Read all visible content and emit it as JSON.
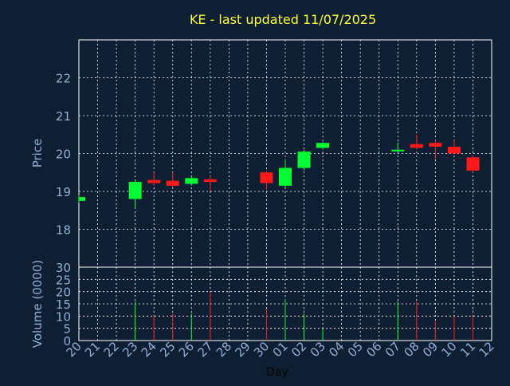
{
  "title": "KE - last updated 11/07/2025",
  "colors": {
    "background": "#0f1f33",
    "grid": "#ffffff",
    "axis_text": "#8fb0d8",
    "title": "#ffff33",
    "up": "#00ff33",
    "down": "#ff1a1a"
  },
  "chart_data": {
    "type": "candlestick",
    "title": "KE - last updated 11/07/2025",
    "xlabel": "Day",
    "x_ticks": [
      "20",
      "21",
      "22",
      "23",
      "24",
      "25",
      "26",
      "27",
      "28",
      "29",
      "30",
      "01",
      "02",
      "03",
      "04",
      "05",
      "06",
      "07",
      "08",
      "09",
      "10",
      "11",
      "12"
    ],
    "price_panel": {
      "ylabel": "Price",
      "ylim": [
        17.0,
        23.0
      ],
      "y_ticks": [
        18,
        19,
        20,
        21,
        22
      ],
      "grid": true
    },
    "volume_panel": {
      "ylabel": "Volume (0000)",
      "ylim": [
        0,
        30
      ],
      "y_ticks": [
        0,
        5,
        10,
        15,
        20,
        25,
        30
      ],
      "grid": true
    },
    "candles": [
      {
        "day": "20",
        "open": 18.75,
        "high": 18.9,
        "low": 18.7,
        "close": 18.85,
        "volume": 0
      },
      {
        "day": "23",
        "open": 18.8,
        "high": 19.3,
        "low": 18.55,
        "close": 19.25,
        "volume": 16
      },
      {
        "day": "24",
        "open": 19.3,
        "high": 19.5,
        "low": 19.15,
        "close": 19.22,
        "volume": 10
      },
      {
        "day": "25",
        "open": 19.28,
        "high": 19.5,
        "low": 19.1,
        "close": 19.15,
        "volume": 11
      },
      {
        "day": "26",
        "open": 19.2,
        "high": 19.4,
        "low": 19.15,
        "close": 19.35,
        "volume": 11
      },
      {
        "day": "27",
        "open": 19.32,
        "high": 19.4,
        "low": 19.0,
        "close": 19.25,
        "volume": 20
      },
      {
        "day": "30",
        "open": 19.5,
        "high": 19.55,
        "low": 19.05,
        "close": 19.22,
        "volume": 13
      },
      {
        "day": "01",
        "open": 19.15,
        "high": 19.85,
        "low": 19.1,
        "close": 19.62,
        "volume": 17
      },
      {
        "day": "02",
        "open": 19.62,
        "high": 20.1,
        "low": 19.55,
        "close": 20.05,
        "volume": 11
      },
      {
        "day": "03",
        "open": 20.15,
        "high": 20.3,
        "low": 20.1,
        "close": 20.28,
        "volume": 5
      },
      {
        "day": "07",
        "open": 20.08,
        "high": 20.3,
        "low": 20.05,
        "close": 20.1,
        "volume": 16
      },
      {
        "day": "08",
        "open": 20.25,
        "high": 20.5,
        "low": 20.12,
        "close": 20.15,
        "volume": 16
      },
      {
        "day": "09",
        "open": 20.28,
        "high": 20.35,
        "low": 19.85,
        "close": 20.18,
        "volume": 8
      },
      {
        "day": "10",
        "open": 20.18,
        "high": 20.35,
        "low": 20.0,
        "close": 20.0,
        "volume": 10
      },
      {
        "day": "11",
        "open": 19.9,
        "high": 19.95,
        "low": 19.5,
        "close": 19.55,
        "volume": 10
      }
    ]
  }
}
